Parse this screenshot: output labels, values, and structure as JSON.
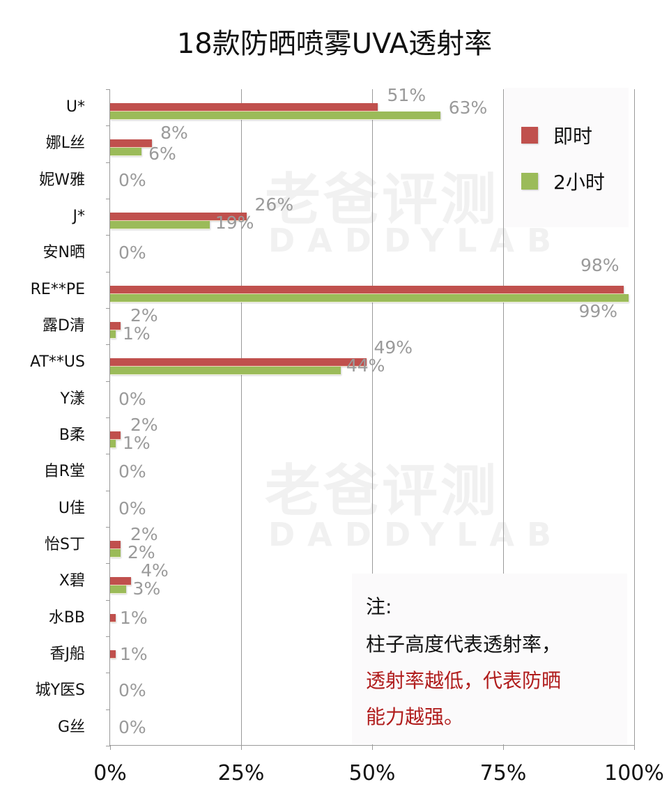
{
  "title": "18款防晒喷雾UVA透射率",
  "legend": {
    "items": [
      {
        "label": "即时",
        "color": "#c0504d"
      },
      {
        "label": "2小时",
        "color": "#9bbb59"
      }
    ]
  },
  "note": {
    "heading": "注:",
    "line1": "柱子高度代表透射率，",
    "line2": "透射率越低，代表防晒",
    "line3": "能力越强。",
    "highlight_color": "#b01c1c"
  },
  "watermark": {
    "cn": "老爸评测",
    "en": "DADDYLAB"
  },
  "x_axis": {
    "ticks": [
      "0%",
      "25%",
      "50%",
      "75%",
      "100%"
    ]
  },
  "chart_data": {
    "type": "bar",
    "orientation": "horizontal",
    "title": "18款防晒喷雾UVA透射率",
    "xlabel": "",
    "ylabel": "",
    "xlim": [
      0,
      100
    ],
    "grid": "vertical gridlines at 25% intervals",
    "legend_position": "top-right (inside plot)",
    "categories": [
      "U*",
      "娜L丝",
      "妮W雅",
      "J*",
      "安N晒",
      "RE**PE",
      "露D清",
      "AT**US",
      "Y漾",
      "B柔",
      "自R堂",
      "U佳",
      "怡S丁",
      "X碧",
      "水BB",
      "香J船",
      "城Y医S",
      "G丝"
    ],
    "series": [
      {
        "name": "即时",
        "color": "#c0504d",
        "values": [
          51,
          8,
          0,
          26,
          0,
          98,
          2,
          49,
          0,
          2,
          0,
          0,
          2,
          4,
          1,
          1,
          0,
          0
        ]
      },
      {
        "name": "2小时",
        "color": "#9bbb59",
        "values": [
          63,
          6,
          0,
          19,
          0,
          99,
          1,
          44,
          0,
          1,
          0,
          0,
          2,
          3,
          null,
          null,
          0,
          0
        ]
      }
    ],
    "labels": [
      {
        "category": "U*",
        "red": "51%",
        "green": "63%"
      },
      {
        "category": "娜L丝",
        "red": "8%",
        "green": "6%"
      },
      {
        "category": "妮W雅",
        "single": "0%"
      },
      {
        "category": "J*",
        "red": "26%",
        "green": "19%"
      },
      {
        "category": "安N晒",
        "single": "0%"
      },
      {
        "category": "RE**PE",
        "red": "98%",
        "green": "99%"
      },
      {
        "category": "露D清",
        "red": "2%",
        "green": "1%"
      },
      {
        "category": "AT**US",
        "red": "49%",
        "green": "44%"
      },
      {
        "category": "Y漾",
        "single": "0%"
      },
      {
        "category": "B柔",
        "red": "2%",
        "green": "1%"
      },
      {
        "category": "自R堂",
        "single": "0%"
      },
      {
        "category": "U佳",
        "single": "0%"
      },
      {
        "category": "怡S丁",
        "red": "2%",
        "green": "2%"
      },
      {
        "category": "X碧",
        "red": "4%",
        "green": "3%"
      },
      {
        "category": "水BB",
        "single": "1%"
      },
      {
        "category": "香J船",
        "single": "1%"
      },
      {
        "category": "城Y医S",
        "single": "0%"
      },
      {
        "category": "G丝",
        "single": "0%"
      }
    ],
    "annotation": "注: 柱子高度代表透射率，透射率越低，代表防晒能力越强。"
  }
}
